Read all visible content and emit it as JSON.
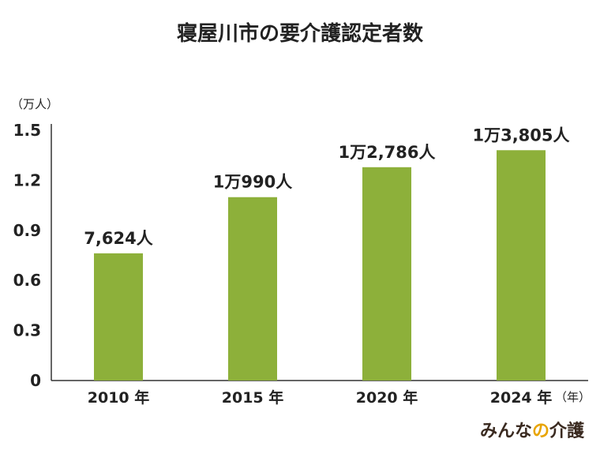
{
  "chart_data": {
    "type": "bar",
    "title": "寝屋川市の要介護認定者数",
    "ylabel": "（万人）",
    "xlabel": "（年）",
    "ylim": [
      0,
      1.5
    ],
    "yticks": [
      0,
      0.3,
      0.6,
      0.9,
      1.2,
      1.5
    ],
    "ytick_labels": [
      "0",
      "0.3",
      "0.6",
      "0.9",
      "1.2",
      "1.5"
    ],
    "categories": [
      "2010 年",
      "2015 年",
      "2020 年",
      "2024 年"
    ],
    "values": [
      0.7624,
      1.099,
      1.2786,
      1.3805
    ],
    "data_labels": [
      "7,624人",
      "1万990人",
      "1万2,786人",
      "1万3,805人"
    ],
    "bar_color": "#8db03a",
    "grid": false,
    "legend": "none"
  },
  "brand": {
    "part1": "みんな",
    "part2": "の",
    "part3": "介護",
    "accent_color": "#e8a400"
  }
}
